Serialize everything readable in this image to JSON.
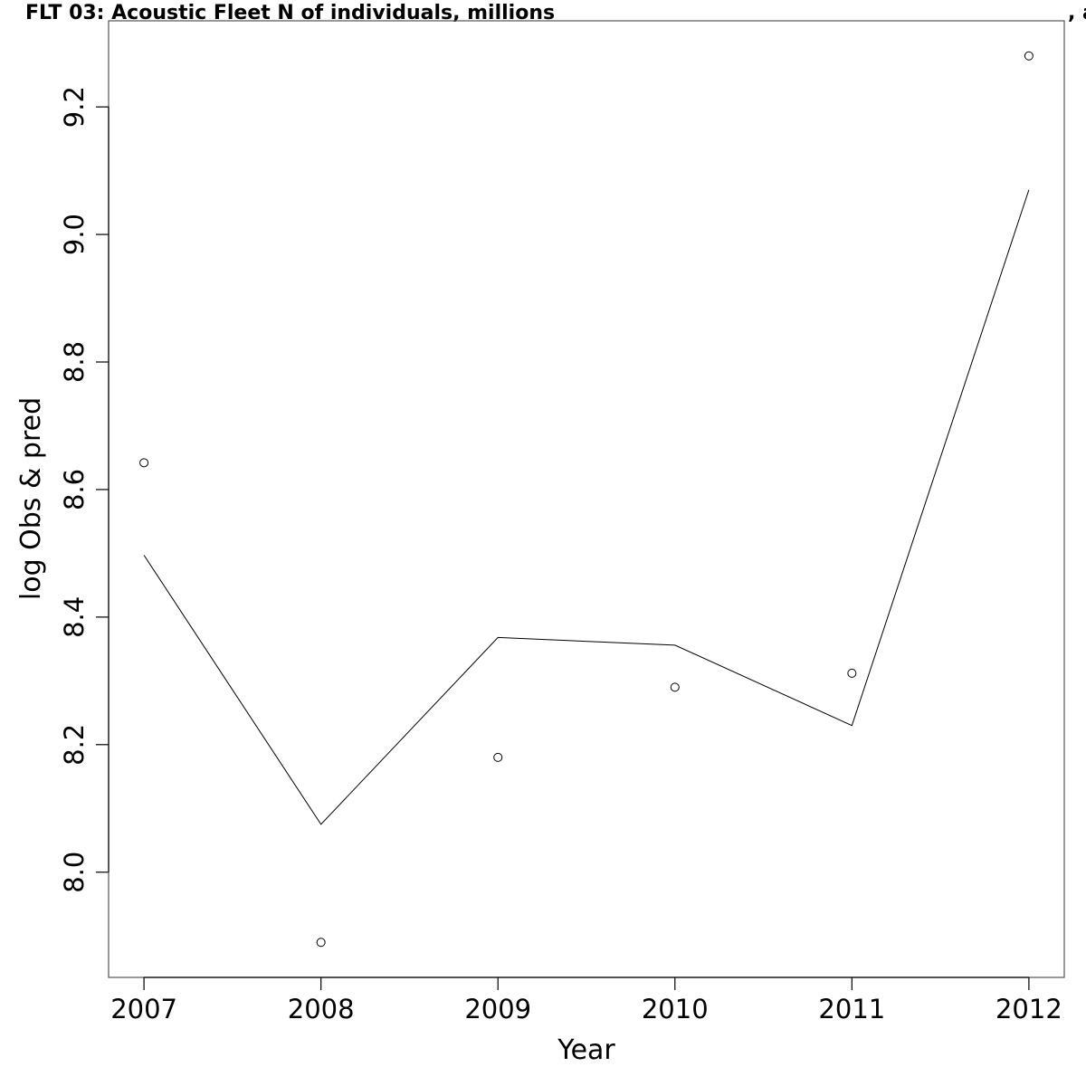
{
  "chart_data": {
    "type": "line",
    "title": "FLT 03: Acoustic Fleet   N of individuals, millions",
    "title_trailing": ", a",
    "xlabel": "Year",
    "ylabel": "log Obs & pred",
    "x": [
      2007,
      2008,
      2009,
      2010,
      2011,
      2012
    ],
    "xlim": [
      2006.8,
      2012.2
    ],
    "ylim": [
      7.835,
      9.335
    ],
    "x_ticks": [
      2007,
      2008,
      2009,
      2010,
      2011,
      2012
    ],
    "x_tick_labels": [
      "2007",
      "2008",
      "2009",
      "2010",
      "2011",
      "2012"
    ],
    "y_ticks": [
      8.0,
      8.2,
      8.4,
      8.6,
      8.8,
      9.0,
      9.2
    ],
    "y_tick_labels": [
      "8.0",
      "8.2",
      "8.4",
      "8.6",
      "8.8",
      "9.0",
      "9.2"
    ],
    "grid": false,
    "legend": "none",
    "series": [
      {
        "role": "observed",
        "style": "points",
        "marker": "open-circle",
        "color": "#000000",
        "values": [
          8.642,
          7.89,
          8.18,
          8.29,
          8.312,
          9.28
        ]
      },
      {
        "role": "predicted",
        "style": "line",
        "color": "#000000",
        "values": [
          8.497,
          8.075,
          8.368,
          8.356,
          8.23,
          9.07
        ]
      }
    ]
  }
}
